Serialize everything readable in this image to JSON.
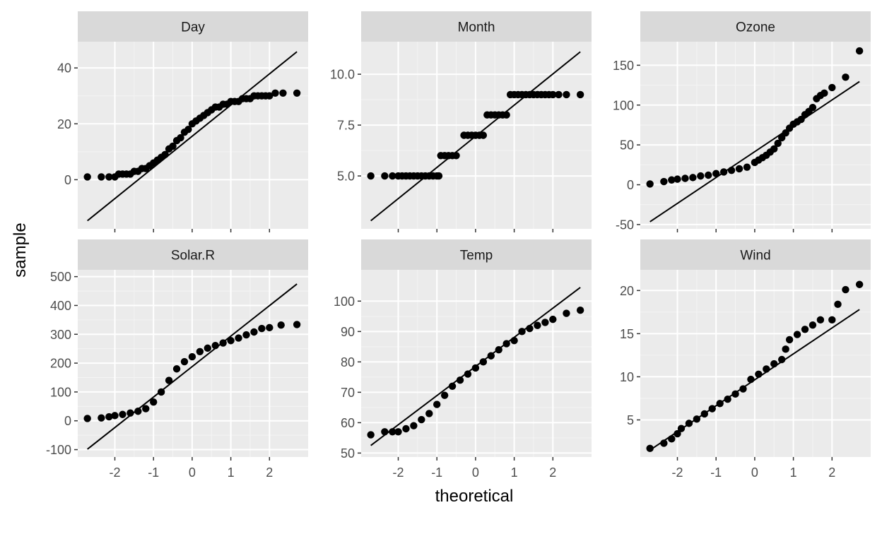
{
  "chart_data": {
    "type": "scatter",
    "kind": "faceted QQ plot",
    "xlabel": "theoretical",
    "ylabel": "sample",
    "grid": true,
    "colors": {
      "panel_background": "#ebebeb",
      "strip_background": "#d9d9d9",
      "grid_major": "#ffffff",
      "grid_minor": "#f4f4f4",
      "point": "#000000",
      "line": "#000000",
      "tick_label": "#4d4d4d",
      "strip_text": "#1a1a1a"
    },
    "facets": [
      {
        "name": "Day",
        "xlim": [
          -2.96,
          3.0
        ],
        "ylim": [
          -17.6,
          49.4
        ],
        "yticks": [
          0,
          20,
          40
        ],
        "ytick_labels": [
          "0",
          "20",
          "40"
        ],
        "xticks": [
          -2,
          -1,
          0,
          1,
          2
        ],
        "xtick_labels": [
          "-2",
          "-1",
          "0",
          "1",
          "2"
        ],
        "ref_line": {
          "x": [
            -2.71,
            2.71
          ],
          "y": [
            -14.7,
            45.8
          ]
        },
        "points": [
          [
            -2.71,
            1
          ],
          [
            -2.35,
            1
          ],
          [
            -2.15,
            1
          ],
          [
            -2.0,
            1
          ],
          [
            -1.9,
            2
          ],
          [
            -1.8,
            2
          ],
          [
            -1.7,
            2
          ],
          [
            -1.6,
            2
          ],
          [
            -1.5,
            3
          ],
          [
            -1.4,
            3
          ],
          [
            -1.3,
            4
          ],
          [
            -1.2,
            4
          ],
          [
            -1.1,
            5
          ],
          [
            -1.0,
            6
          ],
          [
            -0.9,
            7
          ],
          [
            -0.8,
            8
          ],
          [
            -0.7,
            9
          ],
          [
            -0.6,
            11
          ],
          [
            -0.5,
            12
          ],
          [
            -0.4,
            14
          ],
          [
            -0.3,
            15
          ],
          [
            -0.2,
            17
          ],
          [
            -0.1,
            18
          ],
          [
            0.0,
            20
          ],
          [
            0.1,
            21
          ],
          [
            0.2,
            22
          ],
          [
            0.3,
            23
          ],
          [
            0.4,
            24
          ],
          [
            0.5,
            25
          ],
          [
            0.6,
            26
          ],
          [
            0.7,
            26
          ],
          [
            0.8,
            27
          ],
          [
            0.9,
            27
          ],
          [
            1.0,
            28
          ],
          [
            1.1,
            28
          ],
          [
            1.2,
            28
          ],
          [
            1.3,
            29
          ],
          [
            1.4,
            29
          ],
          [
            1.5,
            29
          ],
          [
            1.6,
            30
          ],
          [
            1.7,
            30
          ],
          [
            1.8,
            30
          ],
          [
            1.9,
            30
          ],
          [
            2.0,
            30
          ],
          [
            2.15,
            31
          ],
          [
            2.35,
            31
          ],
          [
            2.71,
            31
          ]
        ]
      },
      {
        "name": "Month",
        "xlim": [
          -2.96,
          3.0
        ],
        "ylim": [
          2.4,
          11.6
        ],
        "yticks": [
          5.0,
          7.5,
          10.0
        ],
        "ytick_labels": [
          "5.0",
          "7.5",
          "10.0"
        ],
        "xticks": [
          -2,
          -1,
          0,
          1,
          2
        ],
        "xtick_labels": [
          "-2",
          "-1",
          "0",
          "1",
          "2"
        ],
        "ref_line": {
          "x": [
            -2.71,
            2.71
          ],
          "y": [
            2.8,
            11.1
          ]
        },
        "points": [
          [
            -2.71,
            5
          ],
          [
            -2.35,
            5
          ],
          [
            -2.15,
            5
          ],
          [
            -2.0,
            5
          ],
          [
            -1.9,
            5
          ],
          [
            -1.8,
            5
          ],
          [
            -1.7,
            5
          ],
          [
            -1.6,
            5
          ],
          [
            -1.5,
            5
          ],
          [
            -1.4,
            5
          ],
          [
            -1.3,
            5
          ],
          [
            -1.2,
            5
          ],
          [
            -1.1,
            5
          ],
          [
            -1.0,
            5
          ],
          [
            -0.95,
            5
          ],
          [
            -0.9,
            6
          ],
          [
            -0.8,
            6
          ],
          [
            -0.7,
            6
          ],
          [
            -0.6,
            6
          ],
          [
            -0.5,
            6
          ],
          [
            -0.3,
            7
          ],
          [
            -0.2,
            7
          ],
          [
            -0.1,
            7
          ],
          [
            0.0,
            7
          ],
          [
            0.1,
            7
          ],
          [
            0.2,
            7
          ],
          [
            0.3,
            8
          ],
          [
            0.4,
            8
          ],
          [
            0.5,
            8
          ],
          [
            0.6,
            8
          ],
          [
            0.7,
            8
          ],
          [
            0.8,
            8
          ],
          [
            0.9,
            9
          ],
          [
            1.0,
            9
          ],
          [
            1.1,
            9
          ],
          [
            1.2,
            9
          ],
          [
            1.3,
            9
          ],
          [
            1.4,
            9
          ],
          [
            1.5,
            9
          ],
          [
            1.6,
            9
          ],
          [
            1.7,
            9
          ],
          [
            1.8,
            9
          ],
          [
            1.9,
            9
          ],
          [
            2.0,
            9
          ],
          [
            2.15,
            9
          ],
          [
            2.35,
            9
          ],
          [
            2.71,
            9
          ]
        ]
      },
      {
        "name": "Ozone",
        "xlim": [
          -2.96,
          3.0
        ],
        "ylim": [
          -55.4,
          179.6
        ],
        "yticks": [
          -50,
          0,
          50,
          100,
          150
        ],
        "ytick_labels": [
          "-50",
          "0",
          "50",
          "100",
          "150"
        ],
        "xticks": [
          -2,
          -1,
          0,
          1,
          2
        ],
        "xtick_labels": [
          "-2",
          "-1",
          "0",
          "1",
          "2"
        ],
        "ref_line": {
          "x": [
            -2.71,
            2.71
          ],
          "y": [
            -46.5,
            129.5
          ]
        },
        "points": [
          [
            -2.71,
            1
          ],
          [
            -2.35,
            4
          ],
          [
            -2.15,
            6
          ],
          [
            -2.0,
            7
          ],
          [
            -1.8,
            8
          ],
          [
            -1.6,
            9
          ],
          [
            -1.4,
            11
          ],
          [
            -1.2,
            12
          ],
          [
            -1.0,
            14
          ],
          [
            -0.8,
            16
          ],
          [
            -0.6,
            18
          ],
          [
            -0.4,
            20
          ],
          [
            -0.2,
            22
          ],
          [
            0.0,
            28
          ],
          [
            0.1,
            31
          ],
          [
            0.2,
            34
          ],
          [
            0.3,
            37
          ],
          [
            0.4,
            41
          ],
          [
            0.5,
            45
          ],
          [
            0.6,
            52
          ],
          [
            0.7,
            59
          ],
          [
            0.8,
            65
          ],
          [
            0.9,
            71
          ],
          [
            1.0,
            76
          ],
          [
            1.1,
            79
          ],
          [
            1.2,
            82
          ],
          [
            1.3,
            88
          ],
          [
            1.4,
            92
          ],
          [
            1.5,
            97
          ],
          [
            1.6,
            108
          ],
          [
            1.7,
            112
          ],
          [
            1.8,
            115
          ],
          [
            2.0,
            122
          ],
          [
            2.35,
            135
          ],
          [
            2.71,
            168
          ]
        ]
      },
      {
        "name": "Solar.R",
        "xlim": [
          -2.96,
          3.0
        ],
        "ylim": [
          -125.6,
          523.6
        ],
        "yticks": [
          -100,
          0,
          100,
          200,
          300,
          400,
          500
        ],
        "ytick_labels": [
          "-100",
          "0",
          "100",
          "200",
          "300",
          "400",
          "500"
        ],
        "xticks": [
          -2,
          -1,
          0,
          1,
          2
        ],
        "xtick_labels": [
          "-2",
          "-1",
          "0",
          "1",
          "2"
        ],
        "ref_line": {
          "x": [
            -2.71,
            2.71
          ],
          "y": [
            -98.5,
            474.5
          ]
        },
        "points": [
          [
            -2.71,
            8
          ],
          [
            -2.35,
            10
          ],
          [
            -2.15,
            14
          ],
          [
            -2.0,
            18
          ],
          [
            -1.8,
            22
          ],
          [
            -1.6,
            27
          ],
          [
            -1.4,
            33
          ],
          [
            -1.2,
            42
          ],
          [
            -1.0,
            65
          ],
          [
            -0.8,
            100
          ],
          [
            -0.6,
            140
          ],
          [
            -0.4,
            180
          ],
          [
            -0.2,
            205
          ],
          [
            0.0,
            222
          ],
          [
            0.2,
            240
          ],
          [
            0.4,
            252
          ],
          [
            0.6,
            261
          ],
          [
            0.8,
            270
          ],
          [
            1.0,
            278
          ],
          [
            1.2,
            287
          ],
          [
            1.4,
            298
          ],
          [
            1.6,
            308
          ],
          [
            1.8,
            320
          ],
          [
            2.0,
            323
          ],
          [
            2.3,
            332
          ],
          [
            2.71,
            334
          ]
        ]
      },
      {
        "name": "Temp",
        "xlim": [
          -2.96,
          3.0
        ],
        "ylim": [
          48.7,
          110.3
        ],
        "yticks": [
          50,
          60,
          70,
          80,
          90,
          100
        ],
        "ytick_labels": [
          "50",
          "60",
          "70",
          "80",
          "90",
          "100"
        ],
        "xticks": [
          -2,
          -1,
          0,
          1,
          2
        ],
        "xtick_labels": [
          "-2",
          "-1",
          "0",
          "1",
          "2"
        ],
        "ref_line": {
          "x": [
            -2.71,
            2.71
          ],
          "y": [
            52.5,
            104.5
          ]
        },
        "points": [
          [
            -2.71,
            56
          ],
          [
            -2.35,
            57
          ],
          [
            -2.15,
            57
          ],
          [
            -2.0,
            57
          ],
          [
            -1.8,
            58
          ],
          [
            -1.6,
            59
          ],
          [
            -1.4,
            61
          ],
          [
            -1.2,
            63
          ],
          [
            -1.0,
            66
          ],
          [
            -0.8,
            69
          ],
          [
            -0.6,
            72
          ],
          [
            -0.4,
            74
          ],
          [
            -0.2,
            76
          ],
          [
            0.0,
            78
          ],
          [
            0.2,
            80
          ],
          [
            0.4,
            82
          ],
          [
            0.6,
            84
          ],
          [
            0.8,
            86
          ],
          [
            1.0,
            87
          ],
          [
            1.2,
            90
          ],
          [
            1.4,
            91
          ],
          [
            1.6,
            92
          ],
          [
            1.8,
            93
          ],
          [
            2.0,
            94
          ],
          [
            2.35,
            96
          ],
          [
            2.71,
            97
          ]
        ]
      },
      {
        "name": "Wind",
        "xlim": [
          -2.96,
          3.0
        ],
        "ylim": [
          0.7,
          22.4
        ],
        "yticks": [
          5,
          10,
          15,
          20
        ],
        "ytick_labels": [
          "5",
          "10",
          "15",
          "20"
        ],
        "xticks": [
          -2,
          -1,
          0,
          1,
          2
        ],
        "xtick_labels": [
          "-2",
          "-1",
          "0",
          "1",
          "2"
        ],
        "ref_line": {
          "x": [
            -2.71,
            2.71
          ],
          "y": [
            1.5,
            17.8
          ]
        },
        "points": [
          [
            -2.71,
            1.7
          ],
          [
            -2.35,
            2.3
          ],
          [
            -2.15,
            2.8
          ],
          [
            -2.0,
            3.4
          ],
          [
            -1.9,
            4.0
          ],
          [
            -1.7,
            4.6
          ],
          [
            -1.5,
            5.1
          ],
          [
            -1.3,
            5.7
          ],
          [
            -1.1,
            6.3
          ],
          [
            -0.9,
            6.9
          ],
          [
            -0.7,
            7.4
          ],
          [
            -0.5,
            8.0
          ],
          [
            -0.3,
            8.6
          ],
          [
            -0.1,
            9.7
          ],
          [
            0.1,
            10.3
          ],
          [
            0.3,
            10.9
          ],
          [
            0.5,
            11.5
          ],
          [
            0.7,
            12.0
          ],
          [
            0.8,
            13.2
          ],
          [
            0.9,
            14.3
          ],
          [
            1.1,
            14.9
          ],
          [
            1.3,
            15.5
          ],
          [
            1.5,
            16.0
          ],
          [
            1.7,
            16.6
          ],
          [
            2.0,
            16.6
          ],
          [
            2.15,
            18.4
          ],
          [
            2.35,
            20.1
          ],
          [
            2.71,
            20.7
          ]
        ]
      }
    ]
  }
}
